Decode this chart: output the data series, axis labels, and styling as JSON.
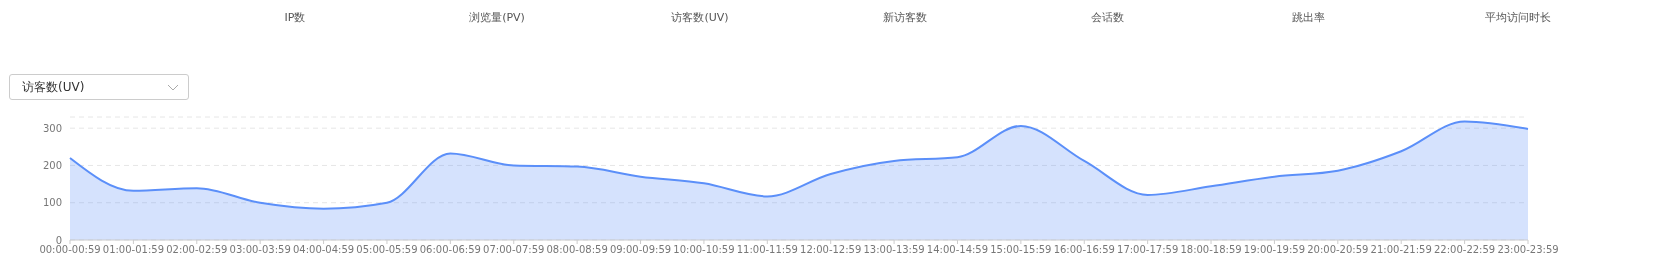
{
  "chart_data": {
    "type": "area",
    "title": "访客数(UV)",
    "annotations": [
      "IP数",
      "浏览量(PV)",
      "访客数(UV)",
      "新访客数",
      "会话数",
      "跳出率",
      "平均访问时长"
    ],
    "categories": [
      "00:00-00:59",
      "01:00-01:59",
      "02:00-02:59",
      "03:00-03:59",
      "04:00-04:59",
      "05:00-05:59",
      "06:00-06:59",
      "07:00-07:59",
      "08:00-08:59",
      "09:00-09:59",
      "10:00-10:59",
      "11:00-11:59",
      "12:00-12:59",
      "13:00-13:59",
      "14:00-14:59",
      "15:00-15:59",
      "16:00-16:59",
      "17:00-17:59",
      "18:00-18:59",
      "19:00-19:59",
      "20:00-20:59",
      "21:00-21:59",
      "22:00-22:59",
      "23:00-23:59"
    ],
    "series": [
      {
        "color": "#5b8ff9",
        "values": [
          220,
          132,
          139,
          100,
          84,
          100,
          232,
          200,
          197,
          170,
          152,
          117,
          177,
          212,
          222,
          306,
          212,
          121,
          144,
          170,
          186,
          238,
          318,
          298
        ]
      }
    ],
    "ylim": [
      0,
      330
    ],
    "yticks": [
      0,
      100,
      200,
      300
    ],
    "grid": "y",
    "marker": "none",
    "line_style": "solid"
  }
}
